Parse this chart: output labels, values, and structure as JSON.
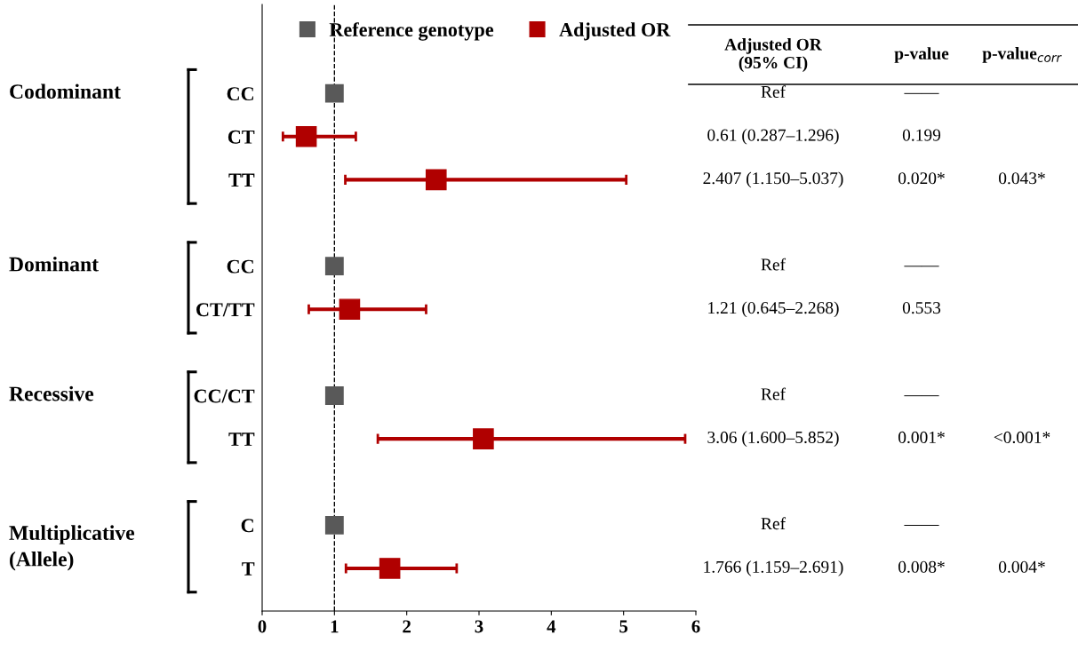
{
  "chart_data": {
    "type": "scatter",
    "orientation": "horizontal",
    "categories": [
      "CC",
      "CT",
      "TT",
      null,
      "CC",
      "CT/TT",
      null,
      "CC/CT",
      "TT",
      null,
      "C",
      "T"
    ],
    "series": [
      {
        "name": "Reference genotype",
        "color": "#595959",
        "values": [
          1,
          null,
          null,
          null,
          1,
          null,
          null,
          1,
          null,
          null,
          1,
          null
        ],
        "value_labels": [
          "Ref",
          null,
          null,
          null,
          "Ref",
          null,
          null,
          "Ref",
          null,
          null,
          "Ref",
          null
        ]
      },
      {
        "name": "Adjusted OR",
        "color": "#b00000",
        "values": [
          null,
          0.61,
          2.407,
          null,
          null,
          1.21,
          null,
          null,
          3.06,
          null,
          null,
          1.766
        ],
        "errors": [
          null,
          [
            0.287,
            1.296
          ],
          [
            1.15,
            5.037
          ],
          null,
          null,
          [
            0.645,
            2.268
          ],
          null,
          null,
          [
            1.6,
            5.852
          ],
          null,
          null,
          [
            1.159,
            2.691
          ]
        ],
        "value_labels": [
          null,
          "0.61 (0.287–1.296)",
          "2.407 (1.150–5.037)",
          null,
          null,
          "1.21 (0.645–2.268)",
          null,
          null,
          "3.06 (1.600–5.852)",
          null,
          null,
          "1.766 (1.159–2.691)"
        ]
      }
    ],
    "annotations": [
      "Codominant",
      "Dominant",
      "Recessive",
      "Multiplicative\n(Allele)",
      "Adjusted OR\n(95% CI)",
      "p-value",
      "p-value$_{corr}$",
      "——",
      "0.199",
      "0.020*",
      "——",
      "0.553",
      "——",
      "0.001*",
      "——",
      "0.008*",
      "0.043*",
      "<0.001*",
      "0.004*"
    ],
    "xlim": [
      0,
      6
    ],
    "xticks": [
      0,
      1,
      2,
      3,
      4,
      5,
      6
    ],
    "ref_lines": [
      {
        "axis": "x",
        "value": 1,
        "color": "#000000",
        "line_style": "dashed"
      }
    ],
    "marker": "square",
    "legend": "top",
    "grid": false
  }
}
